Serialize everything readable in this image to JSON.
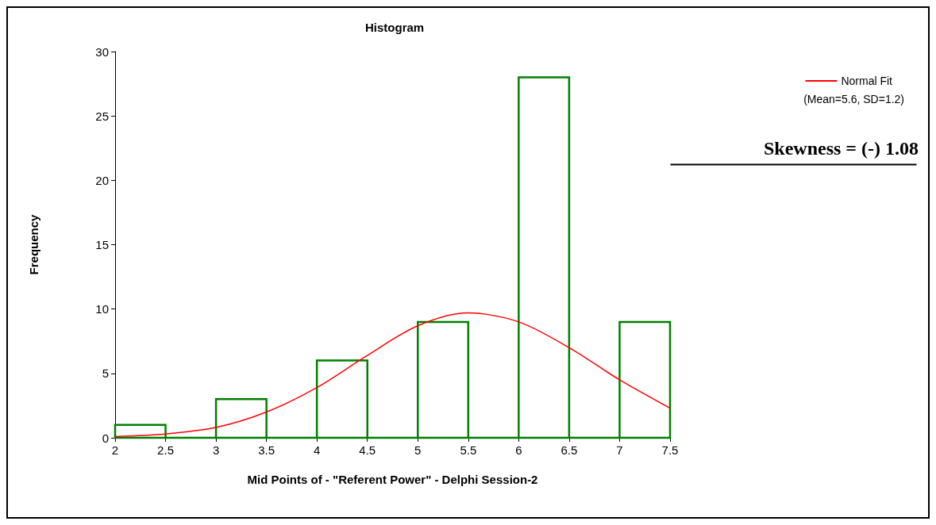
{
  "chart_data": {
    "type": "histogram",
    "title": "Histogram",
    "xlabel": "Mid Points of - \"Referent Power\" - Delphi Session-2",
    "ylabel": "Frequency",
    "bins": [
      2,
      2.5,
      3,
      3.5,
      4,
      4.5,
      5,
      5.5,
      6,
      6.5,
      7,
      7.5
    ],
    "values": [
      1,
      0,
      3,
      0,
      6,
      0,
      9,
      0,
      28,
      0,
      9
    ],
    "color": "#008000",
    "series": [
      {
        "name": "Normal Fit",
        "type": "line",
        "color": "#ff0000",
        "x": [
          2,
          2.5,
          3,
          3.5,
          4,
          4.5,
          5,
          5.5,
          6,
          6.5,
          7,
          7.5
        ],
        "values": [
          0.1,
          0.3,
          0.8,
          2.0,
          3.9,
          6.4,
          8.7,
          9.7,
          9.0,
          7.0,
          4.5,
          2.3
        ]
      }
    ],
    "xlim": [
      2,
      7.5
    ],
    "xticks": [
      2,
      2.5,
      3,
      3.5,
      4,
      4.5,
      5,
      5.5,
      6,
      6.5,
      7,
      7.5
    ],
    "ylim": [
      0,
      30
    ],
    "yticks": [
      0,
      5,
      10,
      15,
      20,
      25,
      30
    ],
    "grid": false,
    "legend": "top right",
    "marker": "none",
    "annotations": [
      "(Mean=5.6, SD=1.2)",
      "Skewness = (-) 1.08"
    ]
  }
}
